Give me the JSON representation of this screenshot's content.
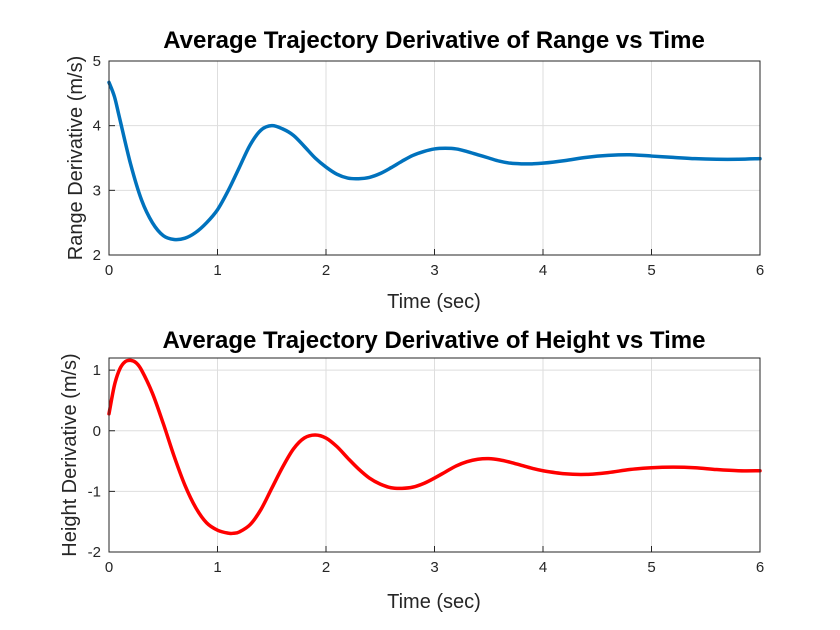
{
  "chart_data": [
    {
      "type": "line",
      "title": "Average Trajectory Derivative of Range vs Time",
      "xlabel": "Time (sec)",
      "ylabel": "Range Derivative (m/s)",
      "xlim": [
        0,
        6
      ],
      "ylim": [
        2,
        5
      ],
      "xticks": [
        "0",
        "1",
        "2",
        "3",
        "4",
        "5",
        "6"
      ],
      "yticks": [
        "2",
        "3",
        "4",
        "5"
      ],
      "grid": true,
      "series": [
        {
          "color": "#0072bd",
          "x": [
            0,
            0.05,
            0.1,
            0.2,
            0.3,
            0.4,
            0.5,
            0.6,
            0.7,
            0.8,
            0.9,
            1.0,
            1.1,
            1.2,
            1.3,
            1.4,
            1.5,
            1.6,
            1.7,
            1.8,
            1.9,
            2.0,
            2.1,
            2.2,
            2.3,
            2.4,
            2.5,
            2.6,
            2.7,
            2.8,
            2.9,
            3.0,
            3.1,
            3.2,
            3.3,
            3.4,
            3.5,
            3.6,
            3.7,
            3.8,
            3.9,
            4.0,
            4.2,
            4.4,
            4.6,
            4.8,
            5.0,
            5.2,
            5.4,
            5.6,
            5.8,
            6.0
          ],
          "y": [
            4.67,
            4.45,
            4.1,
            3.4,
            2.85,
            2.5,
            2.3,
            2.24,
            2.26,
            2.35,
            2.5,
            2.7,
            3.0,
            3.35,
            3.7,
            3.93,
            4.0,
            3.95,
            3.85,
            3.68,
            3.5,
            3.36,
            3.25,
            3.19,
            3.18,
            3.2,
            3.26,
            3.35,
            3.45,
            3.54,
            3.6,
            3.64,
            3.65,
            3.64,
            3.6,
            3.55,
            3.5,
            3.45,
            3.42,
            3.41,
            3.41,
            3.42,
            3.46,
            3.51,
            3.54,
            3.55,
            3.53,
            3.51,
            3.49,
            3.48,
            3.48,
            3.49
          ]
        }
      ]
    },
    {
      "type": "line",
      "title": "Average Trajectory Derivative of Height vs Time",
      "xlabel": "Time (sec)",
      "ylabel": "Height Derivative (m/s)",
      "xlim": [
        0,
        6
      ],
      "ylim": [
        -2,
        1.2
      ],
      "xticks": [
        "0",
        "1",
        "2",
        "3",
        "4",
        "5",
        "6"
      ],
      "yticks": [
        "-2",
        "-1",
        "0",
        "1"
      ],
      "grid": true,
      "series": [
        {
          "color": "#ff0000",
          "x": [
            0,
            0.05,
            0.1,
            0.15,
            0.2,
            0.25,
            0.3,
            0.4,
            0.5,
            0.6,
            0.7,
            0.8,
            0.9,
            1.0,
            1.1,
            1.15,
            1.2,
            1.3,
            1.4,
            1.5,
            1.6,
            1.7,
            1.8,
            1.9,
            2.0,
            2.1,
            2.2,
            2.3,
            2.4,
            2.5,
            2.6,
            2.7,
            2.8,
            2.9,
            3.0,
            3.1,
            3.2,
            3.3,
            3.4,
            3.5,
            3.6,
            3.7,
            3.8,
            3.9,
            4.0,
            4.2,
            4.4,
            4.6,
            4.8,
            5.0,
            5.2,
            5.4,
            5.6,
            5.8,
            6.0
          ],
          "y": [
            0.28,
            0.75,
            1.02,
            1.14,
            1.16,
            1.12,
            1.0,
            0.62,
            0.12,
            -0.42,
            -0.9,
            -1.27,
            -1.52,
            -1.64,
            -1.69,
            -1.69,
            -1.67,
            -1.55,
            -1.3,
            -0.95,
            -0.6,
            -0.3,
            -0.12,
            -0.07,
            -0.12,
            -0.26,
            -0.45,
            -0.63,
            -0.78,
            -0.88,
            -0.94,
            -0.95,
            -0.93,
            -0.87,
            -0.78,
            -0.68,
            -0.58,
            -0.51,
            -0.47,
            -0.46,
            -0.48,
            -0.52,
            -0.57,
            -0.62,
            -0.66,
            -0.71,
            -0.72,
            -0.69,
            -0.64,
            -0.61,
            -0.6,
            -0.61,
            -0.64,
            -0.66,
            -0.66
          ]
        }
      ]
    }
  ]
}
